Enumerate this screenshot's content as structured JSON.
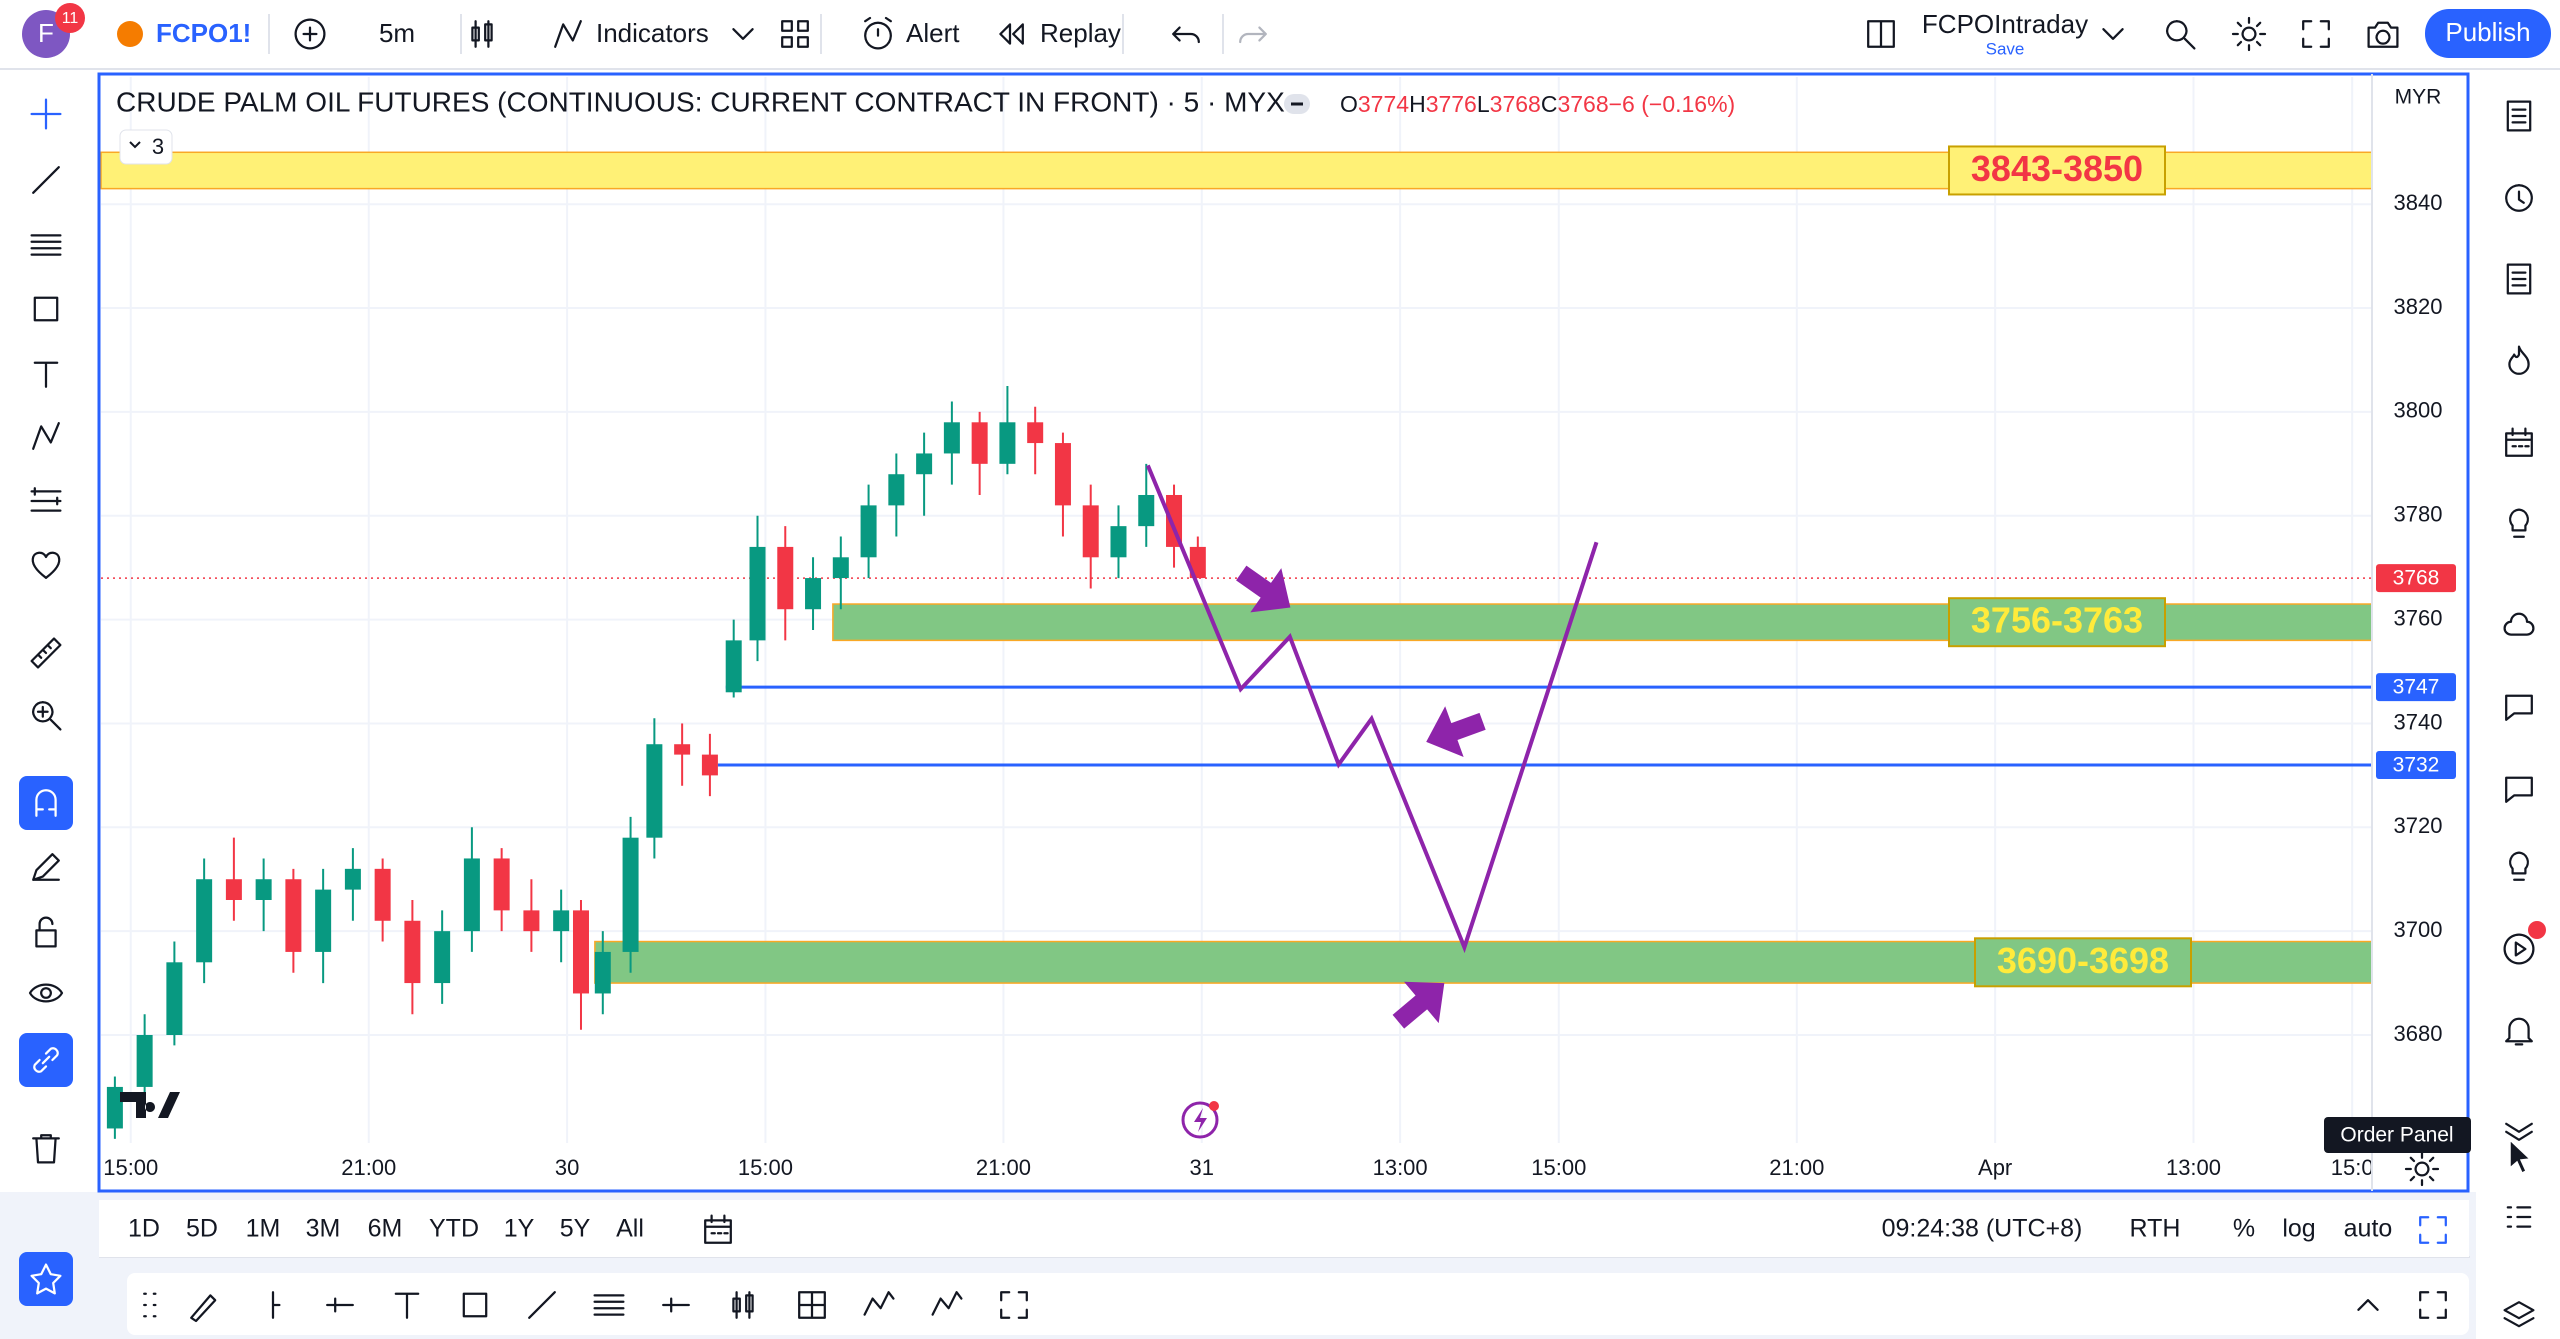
{
  "header": {
    "avatar": "F",
    "notifications": "11",
    "symbol": "FCPO1!",
    "interval": "5m",
    "indicators": "Indicators",
    "alert": "Alert",
    "replay": "Replay",
    "layout": "FCPOIntraday",
    "save": "Save",
    "publish": "Publish"
  },
  "legend": {
    "collapse_count": "3",
    "title": "CRUDE PALM OIL FUTURES (CONTINUOUS: CURRENT CONTRACT IN FRONT) · 5 · MYX",
    "ohlc": [
      {
        "label": "O",
        "value": 3774
      },
      {
        "label": "H",
        "value": 3776
      },
      {
        "label": "L",
        "value": 3768
      },
      {
        "label": "C",
        "value": 3768
      }
    ],
    "change": "−6 (−0.16%)"
  },
  "chart_data": {
    "type": "candlestick",
    "currency": "MYR",
    "x": [
      -0.4,
      0.35,
      1.1,
      1.85,
      2.6,
      3.35,
      4.1,
      4.85,
      5.6,
      6.35,
      7.1,
      7.85,
      8.6,
      9.35,
      10.1,
      10.85,
      11.35,
      11.9,
      12.6,
      13.2,
      13.9,
      14.6,
      15.2,
      15.8,
      16.5,
      17.2,
      17.9,
      18.6,
      19.3,
      20.0,
      20.7,
      21.4,
      22.1,
      22.8,
      23.5,
      24.2,
      24.9,
      25.6,
      26.3,
      26.9
    ],
    "open": [
      3662,
      3670,
      3680,
      3694,
      3710,
      3706,
      3710,
      3696,
      3708,
      3712,
      3702,
      3690,
      3700,
      3714,
      3704,
      3700,
      3704,
      3688,
      3696,
      3718,
      3736,
      3734,
      3746,
      3756,
      3774,
      3762,
      3768,
      3772,
      3782,
      3788,
      3792,
      3798,
      3790,
      3798,
      3794,
      3782,
      3772,
      3778,
      3784,
      3774
    ],
    "high": [
      3672,
      3684,
      3698,
      3714,
      3718,
      3714,
      3712,
      3712,
      3716,
      3714,
      3706,
      3704,
      3720,
      3716,
      3710,
      3708,
      3706,
      3700,
      3722,
      3741,
      3740,
      3738,
      3760,
      3780,
      3778,
      3772,
      3776,
      3786,
      3792,
      3796,
      3802,
      3800,
      3805,
      3801,
      3796,
      3786,
      3782,
      3790,
      3786,
      3776
    ],
    "low": [
      3660,
      3668,
      3678,
      3690,
      3702,
      3700,
      3692,
      3690,
      3702,
      3698,
      3684,
      3686,
      3696,
      3700,
      3696,
      3694,
      3681,
      3684,
      3692,
      3714,
      3728,
      3726,
      3745,
      3752,
      3756,
      3758,
      3762,
      3768,
      3776,
      3780,
      3786,
      3784,
      3788,
      3788,
      3776,
      3766,
      3768,
      3774,
      3770,
      3768
    ],
    "close": [
      3670,
      3680,
      3694,
      3710,
      3706,
      3710,
      3696,
      3708,
      3712,
      3702,
      3690,
      3700,
      3714,
      3704,
      3700,
      3704,
      3688,
      3696,
      3718,
      3736,
      3734,
      3730,
      3756,
      3774,
      3762,
      3768,
      3772,
      3782,
      3788,
      3792,
      3798,
      3790,
      3798,
      3794,
      3782,
      3772,
      3778,
      3784,
      3774,
      3768
    ],
    "up_color": "#089981",
    "down_color": "#f23645",
    "xlim": [
      -0.75,
      56.5
    ],
    "xticks": [
      {
        "value": 0,
        "label": "15:00"
      },
      {
        "value": 6,
        "label": "21:00"
      },
      {
        "value": 11,
        "label": "30"
      },
      {
        "value": 16,
        "label": "15:00"
      },
      {
        "value": 22,
        "label": "21:00"
      },
      {
        "value": 27,
        "label": "31"
      },
      {
        "value": 32,
        "label": "13:00"
      },
      {
        "value": 36,
        "label": "15:00"
      },
      {
        "value": 42,
        "label": "21:00"
      },
      {
        "value": 47,
        "label": "Apr"
      },
      {
        "value": 52,
        "label": "13:00"
      },
      {
        "value": 56,
        "label": "15:0"
      }
    ],
    "ylim": [
      3659.2,
      3864.5
    ],
    "yticks": [
      3680,
      3700,
      3720,
      3740,
      3760,
      3780,
      3800,
      3820,
      3840
    ],
    "grid": true,
    "last_price": 3768,
    "last_color": "#f23645",
    "zones": [
      {
        "low": 3843,
        "high": 3850,
        "start": -0.75,
        "label": "3843-3850",
        "color": "#fff176",
        "label_color": "#f23645"
      },
      {
        "low": 3756,
        "high": 3763,
        "start": 17.7,
        "label": "3756-3763",
        "color": "#81c784",
        "label_color": "#ffeb3b"
      },
      {
        "low": 3690,
        "high": 3698,
        "start": 11.7,
        "label": "3690-3698",
        "color": "#81c784",
        "label_color": "#ffeb3b"
      }
    ],
    "levels": [
      {
        "value": 3747,
        "start": 15.0,
        "color": "#2962ff"
      },
      {
        "value": 3732,
        "start": 14.8,
        "color": "#2962ff"
      }
    ],
    "projection": {
      "color": "#8e24aa",
      "x": [
        25.64,
        27.98,
        29.22,
        30.45,
        31.28,
        33.62,
        36.95
      ],
      "y": [
        3789.7,
        3746.6,
        3756.7,
        3732.1,
        3740.9,
        3696.9,
        3774.9
      ]
    }
  },
  "bottom_bar": {
    "ranges": [
      "1D",
      "5D",
      "1M",
      "3M",
      "6M",
      "YTD",
      "1Y",
      "5Y",
      "All"
    ],
    "clock": "09:24:38 (UTC+8)",
    "session": "RTH",
    "percent": "%",
    "log": "log",
    "auto": "auto"
  },
  "tooltip": "Order Panel"
}
